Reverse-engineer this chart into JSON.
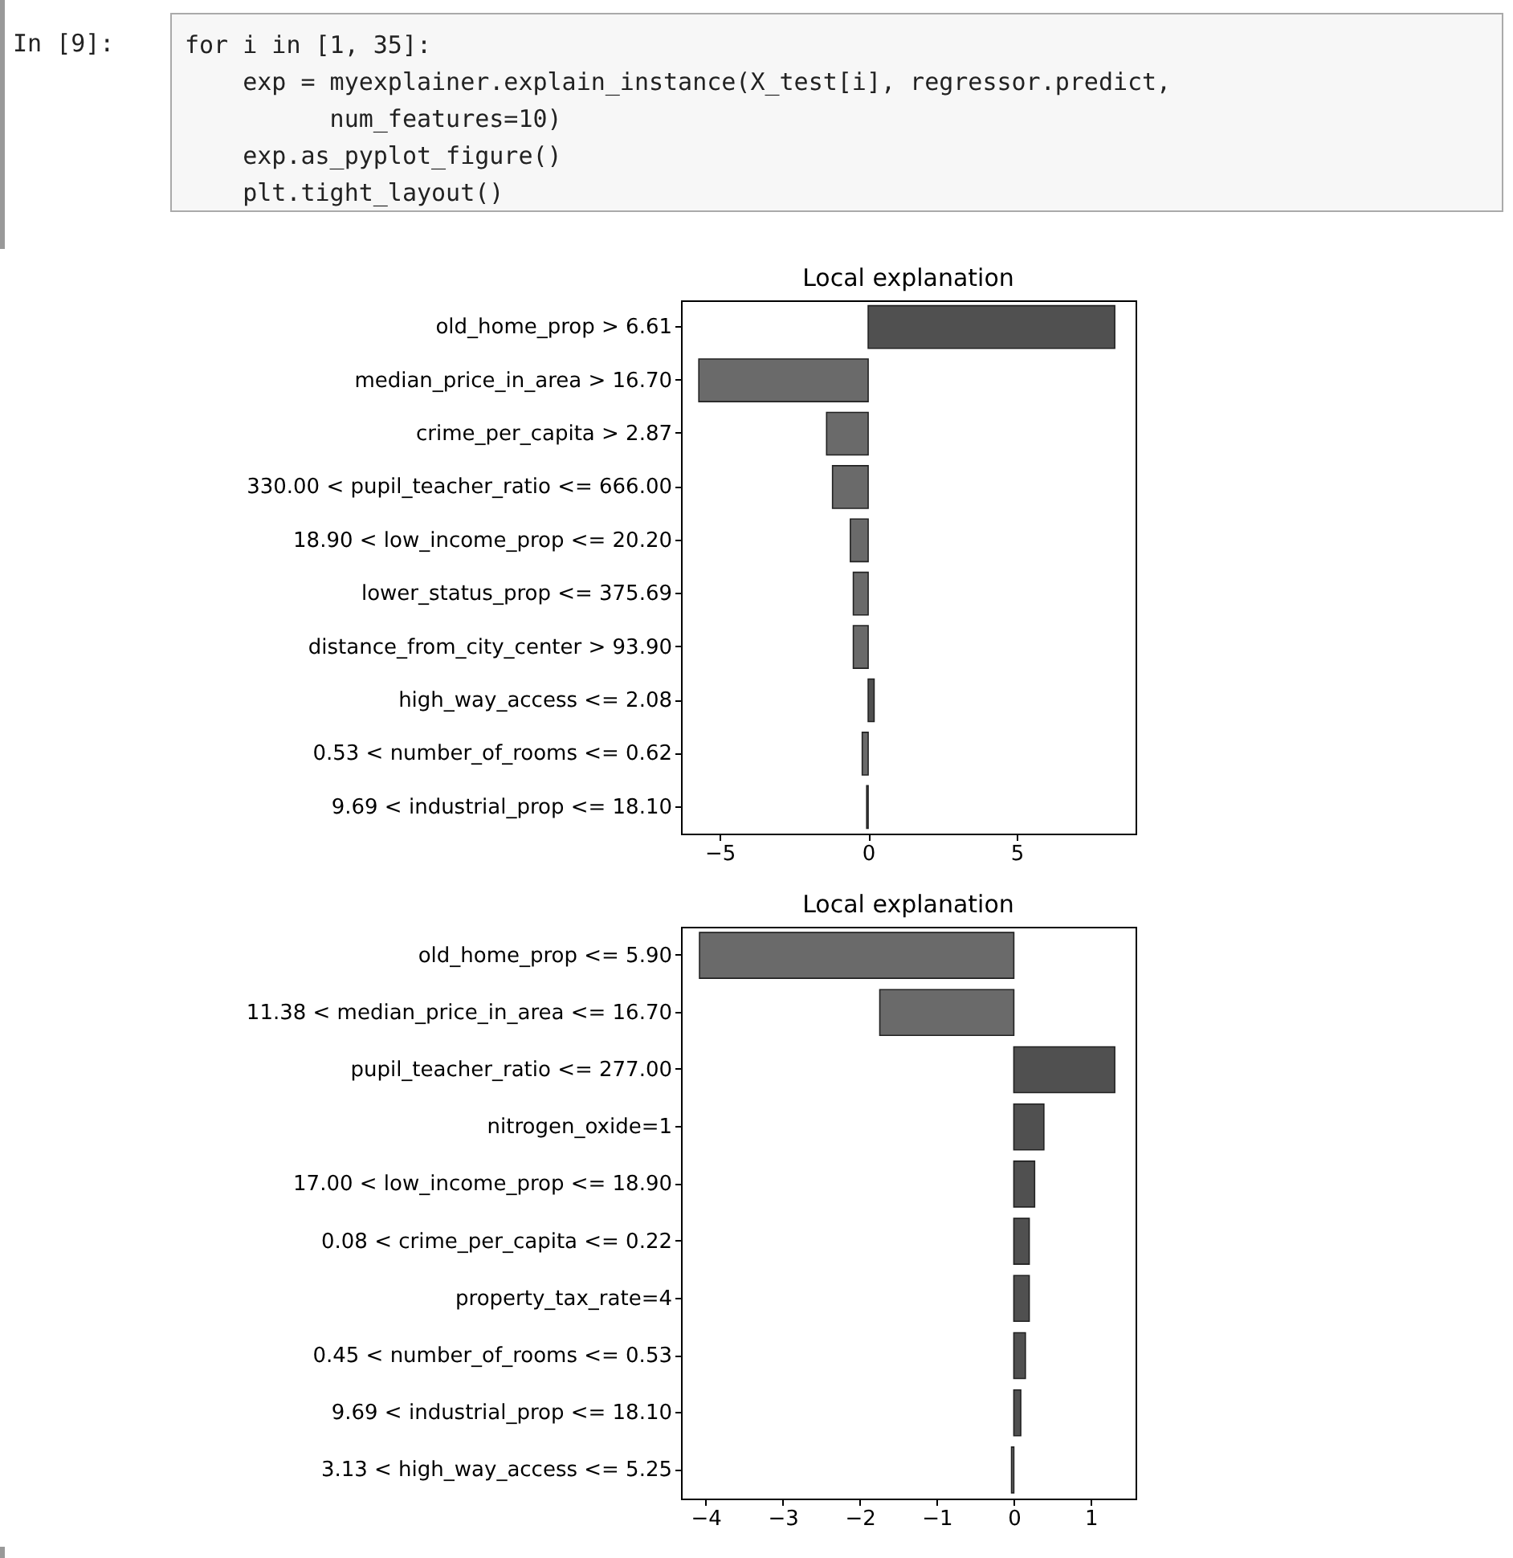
{
  "chart_data": [
    {
      "type": "other",
      "annotations": [
        "In [9]:",
        "for i in [1, 35]:",
        "    exp = myexplainer.explain_instance(X_test[i], regressor.predict,",
        "          num_features=10)",
        "    exp.as_pyplot_figure()",
        "    plt.tight_layout()"
      ]
    },
    {
      "type": "bar",
      "orientation": "horizontal",
      "title": "Local explanation",
      "categories": [
        "old_home_prop > 6.61",
        "median_price_in_area > 16.70",
        "crime_per_capita > 2.87",
        "330.00 < pupil_teacher_ratio <= 666.00",
        "18.90 < low_income_prop <= 20.20",
        "lower_status_prop <= 375.69",
        "distance_from_city_center > 93.90",
        "high_way_access <= 2.08",
        "0.53 < number_of_rooms <= 0.62",
        "9.69 < industrial_prop <= 18.10"
      ],
      "values": [
        8.3,
        -5.7,
        -1.4,
        -1.2,
        -0.6,
        -0.5,
        -0.5,
        0.2,
        -0.2,
        -0.05
      ],
      "colors": [
        "#505050",
        "#6a6a6a",
        "#6a6a6a",
        "#6a6a6a",
        "#6a6a6a",
        "#6a6a6a",
        "#6a6a6a",
        "#505050",
        "#6a6a6a",
        "#6a6a6a"
      ],
      "xlim": [
        -6.3,
        9.0
      ],
      "xticks": [
        {
          "value": -5,
          "label": "−5"
        },
        0,
        5
      ],
      "grid": false
    },
    {
      "type": "bar",
      "orientation": "horizontal",
      "title": "Local explanation",
      "categories": [
        "old_home_prop <= 5.90",
        "11.38 < median_price_in_area <= 16.70",
        "pupil_teacher_ratio <= 277.00",
        "nitrogen_oxide=1",
        "17.00 < low_income_prop <= 18.90",
        "0.08 < crime_per_capita <= 0.22",
        "property_tax_rate=4",
        "0.45 < number_of_rooms <= 0.53",
        "9.69 < industrial_prop <= 18.10",
        "3.13 < high_way_access <= 5.25"
      ],
      "values": [
        -4.08,
        -1.74,
        1.31,
        0.39,
        0.27,
        0.2,
        0.2,
        0.15,
        0.09,
        -0.03
      ],
      "colors": [
        "#6a6a6a",
        "#6a6a6a",
        "#505050",
        "#505050",
        "#505050",
        "#505050",
        "#505050",
        "#505050",
        "#505050",
        "#6a6a6a"
      ],
      "xlim": [
        -4.32,
        1.58
      ],
      "xticks": [
        {
          "value": -4,
          "label": "−4"
        },
        {
          "value": -3,
          "label": "−3"
        },
        {
          "value": -2,
          "label": "−2"
        },
        {
          "value": -1,
          "label": "−1"
        },
        0,
        1
      ],
      "grid": false
    }
  ]
}
